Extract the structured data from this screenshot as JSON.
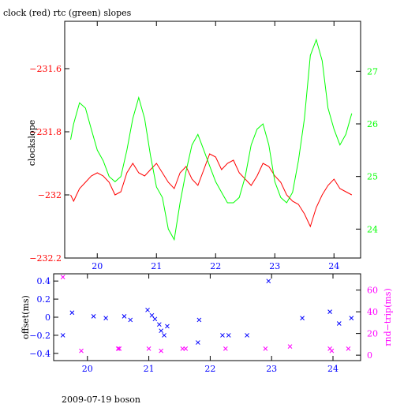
{
  "chart_data": [
    {
      "type": "line",
      "title": "clock (red) rtc (green) slopes",
      "xlabel": "",
      "ylabel": "clockslope",
      "xlim": [
        19.45,
        24.45
      ],
      "ylim": [
        -232.2,
        -231.45
      ],
      "y2lim": [
        23.45,
        27.95
      ],
      "x_ticks": [
        20,
        21,
        22,
        23,
        24
      ],
      "y_ticks": [
        -232.2,
        -232,
        -231.8,
        -231.6
      ],
      "y_tick_labels": [
        "−232.2",
        "−232",
        "−231.8",
        "−231.6"
      ],
      "y2_ticks": [
        24,
        25,
        26,
        27
      ],
      "grid": false,
      "series": [
        {
          "name": "clock",
          "color": "#ff0000",
          "axis": "left",
          "x": [
            19.55,
            19.6,
            19.65,
            19.7,
            19.8,
            19.9,
            20.0,
            20.1,
            20.2,
            20.3,
            20.4,
            20.5,
            20.6,
            20.7,
            20.8,
            20.9,
            21.0,
            21.1,
            21.2,
            21.3,
            21.4,
            21.5,
            21.6,
            21.7,
            21.8,
            21.9,
            22.0,
            22.1,
            22.2,
            22.3,
            22.4,
            22.5,
            22.6,
            22.7,
            22.8,
            22.9,
            23.0,
            23.1,
            23.2,
            23.3,
            23.4,
            23.5,
            23.6,
            23.7,
            23.8,
            23.9,
            24.0,
            24.1,
            24.2,
            24.3
          ],
          "y": [
            -232.0,
            -232.02,
            -232.0,
            -231.98,
            -231.96,
            -231.94,
            -231.93,
            -231.94,
            -231.96,
            -232.0,
            -231.99,
            -231.93,
            -231.9,
            -231.93,
            -231.94,
            -231.92,
            -231.9,
            -231.93,
            -231.96,
            -231.98,
            -231.93,
            -231.91,
            -231.95,
            -231.97,
            -231.92,
            -231.87,
            -231.88,
            -231.92,
            -231.9,
            -231.89,
            -231.93,
            -231.95,
            -231.97,
            -231.94,
            -231.9,
            -231.91,
            -231.94,
            -231.96,
            -232.0,
            -232.02,
            -232.03,
            -232.06,
            -232.1,
            -232.04,
            -232.0,
            -231.97,
            -231.95,
            -231.98,
            -231.99,
            -232.0
          ]
        },
        {
          "name": "rtc",
          "color": "#00ff00",
          "axis": "right",
          "x": [
            19.55,
            19.6,
            19.7,
            19.8,
            19.9,
            20.0,
            20.1,
            20.2,
            20.3,
            20.4,
            20.5,
            20.6,
            20.7,
            20.8,
            20.9,
            21.0,
            21.1,
            21.2,
            21.3,
            21.4,
            21.5,
            21.6,
            21.7,
            21.8,
            21.9,
            22.0,
            22.1,
            22.2,
            22.3,
            22.4,
            22.5,
            22.6,
            22.7,
            22.8,
            22.9,
            23.0,
            23.1,
            23.2,
            23.3,
            23.4,
            23.5,
            23.6,
            23.7,
            23.8,
            23.9,
            24.0,
            24.1,
            24.2,
            24.3
          ],
          "y": [
            25.7,
            26.0,
            26.4,
            26.3,
            25.9,
            25.5,
            25.3,
            25.0,
            24.9,
            25.0,
            25.5,
            26.1,
            26.5,
            26.1,
            25.4,
            24.8,
            24.6,
            24.0,
            23.8,
            24.5,
            25.1,
            25.6,
            25.8,
            25.5,
            25.2,
            24.9,
            24.7,
            24.5,
            24.5,
            24.6,
            25.0,
            25.6,
            25.9,
            26.0,
            25.6,
            24.9,
            24.6,
            24.5,
            24.7,
            25.3,
            26.1,
            27.3,
            27.6,
            27.2,
            26.3,
            25.9,
            25.6,
            25.8,
            26.2
          ]
        }
      ]
    },
    {
      "type": "scatter",
      "title": "",
      "xlabel": "",
      "ylabel": "offset(ms)",
      "y2label": "rnd−trip(ms)",
      "xlim": [
        19.45,
        24.45
      ],
      "ylim": [
        -0.48,
        0.48
      ],
      "y2lim": [
        -5,
        75
      ],
      "x_ticks": [
        20,
        21,
        22,
        23,
        24
      ],
      "y_ticks": [
        0.4,
        0.2,
        0,
        -0.2,
        -0.4
      ],
      "y_tick_labels": [
        "0.4",
        "0.2",
        "0",
        "−0.2",
        "−0.4"
      ],
      "y2_ticks": [
        0,
        20,
        40,
        60
      ],
      "grid": false,
      "series": [
        {
          "name": "offset",
          "color": "#0000ff",
          "axis": "left",
          "marker": "x",
          "x": [
            19.6,
            19.75,
            20.1,
            20.3,
            20.6,
            20.7,
            20.98,
            21.05,
            21.1,
            21.17,
            21.2,
            21.25,
            21.3,
            21.8,
            21.82,
            22.2,
            22.3,
            22.6,
            22.95,
            23.5,
            23.95,
            24.1,
            24.3
          ],
          "y": [
            -0.2,
            0.05,
            0.01,
            -0.01,
            0.01,
            -0.03,
            0.08,
            0.02,
            -0.02,
            -0.08,
            -0.15,
            -0.2,
            -0.1,
            -0.28,
            -0.03,
            -0.2,
            -0.2,
            -0.2,
            0.4,
            -0.01,
            0.06,
            -0.07,
            -0.01
          ]
        },
        {
          "name": "rnd-trip",
          "color": "#ff00ff",
          "axis": "right",
          "marker": "x",
          "x": [
            19.6,
            19.9,
            20.5,
            20.52,
            21.0,
            21.2,
            21.55,
            21.6,
            22.25,
            22.9,
            23.3,
            23.95,
            23.98,
            24.25
          ],
          "y": [
            72,
            4,
            6,
            6,
            6,
            4,
            6,
            6,
            6,
            6,
            8,
            6,
            4,
            6
          ]
        }
      ]
    }
  ],
  "footer": {
    "text": "2009-07-19 boson"
  }
}
